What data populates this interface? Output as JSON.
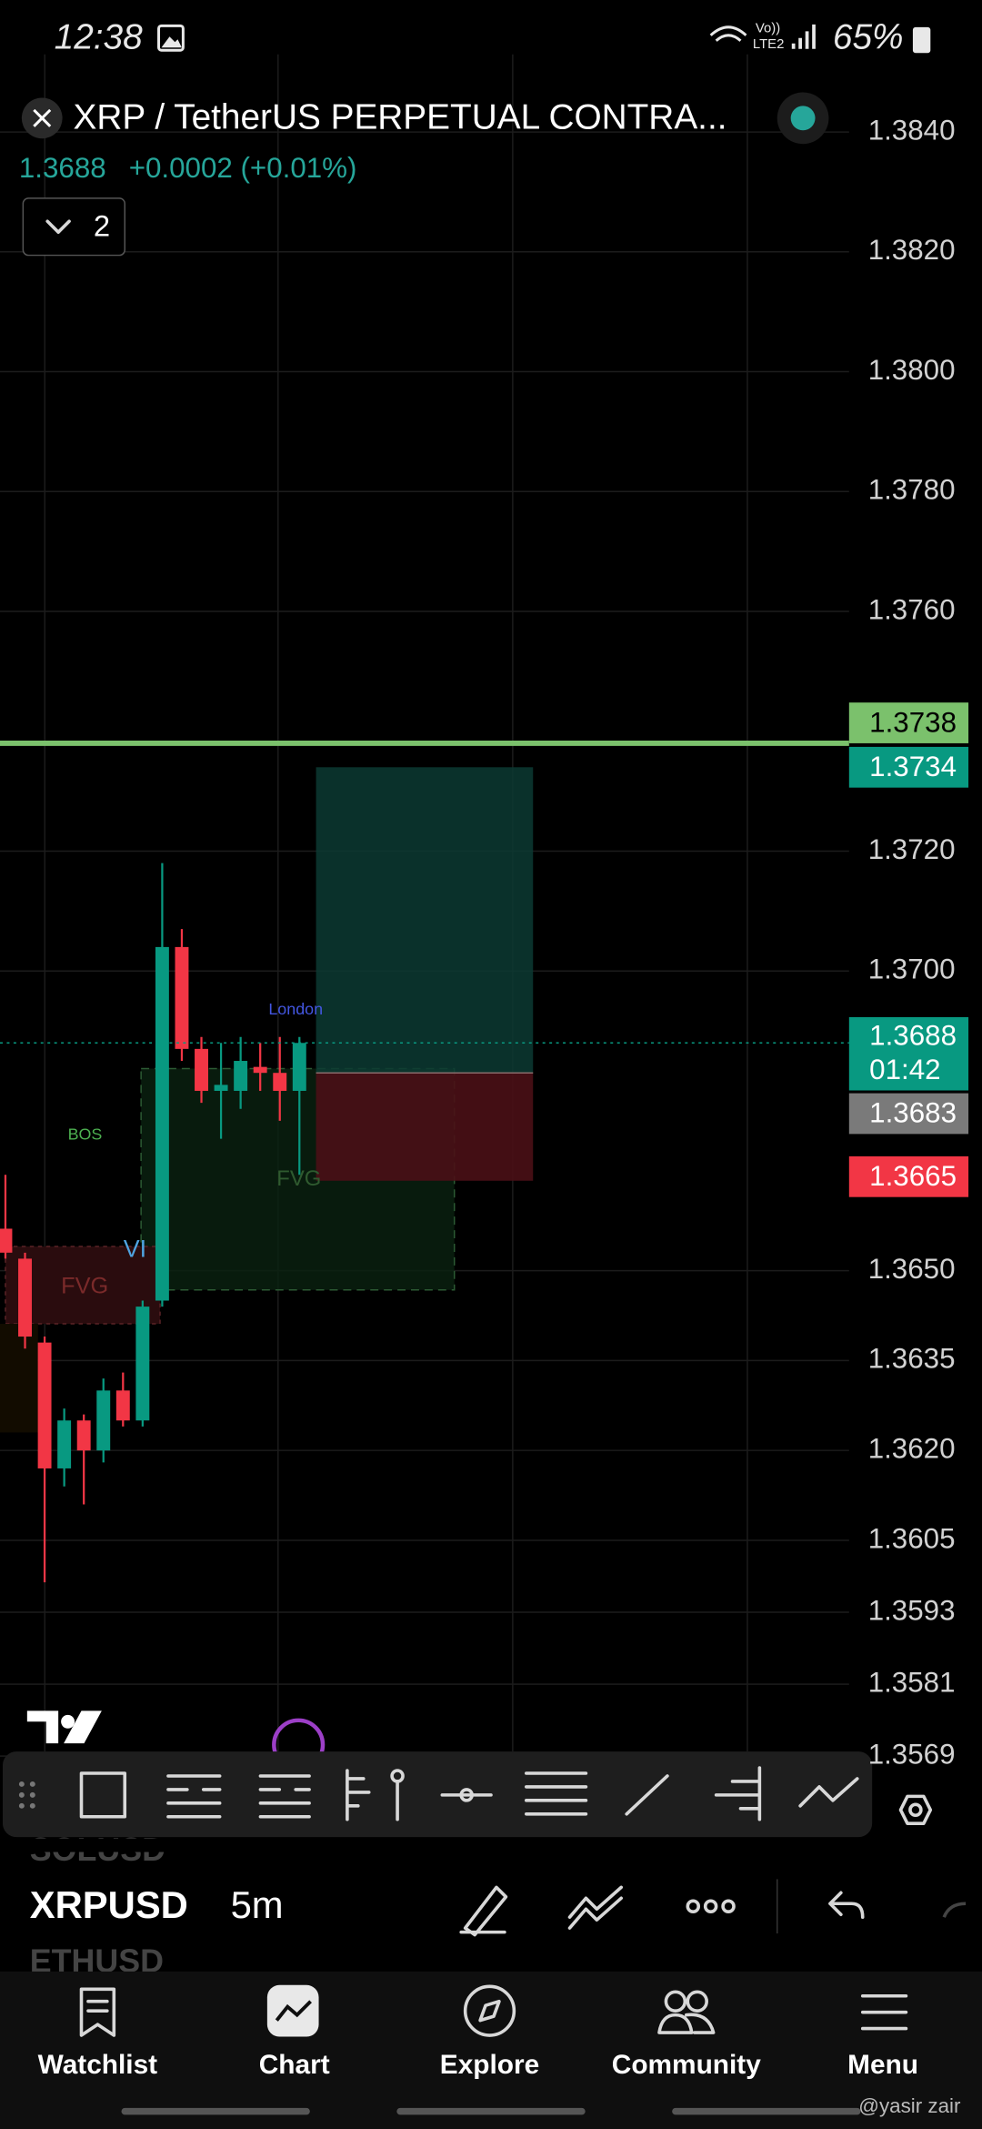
{
  "status_bar": {
    "time": "12:38",
    "network": "Vo))",
    "network_type": "LTE2",
    "battery": "65%"
  },
  "header": {
    "title": "XRP / TetherUS PERPETUAL CONTRA...",
    "price": "1.3688",
    "change": "+0.0002 (+0.01%)",
    "indicators_count": "2"
  },
  "chart_data": {
    "type": "candlestick",
    "ylim": [
      1.3565,
      1.3855
    ],
    "yticks": [
      {
        "value": 1.384,
        "label": "1.3840"
      },
      {
        "value": 1.382,
        "label": "1.3820"
      },
      {
        "value": 1.38,
        "label": "1.3800"
      },
      {
        "value": 1.378,
        "label": "1.3780"
      },
      {
        "value": 1.376,
        "label": "1.3760"
      },
      {
        "value": 1.372,
        "label": "1.3720"
      },
      {
        "value": 1.37,
        "label": "1.3700"
      },
      {
        "value": 1.365,
        "label": "1.3650"
      },
      1.3635,
      {
        "value": 1.362,
        "label": "1.3620"
      },
      1.3605,
      1.3593,
      1.3581,
      1.3569
    ],
    "grid": true,
    "up_color": "#089981",
    "down_color": "#f23645",
    "candles": [
      {
        "open": 1.3657,
        "high": 1.3666,
        "low": 1.3652,
        "close": 1.3653
      },
      {
        "open": 1.3652,
        "high": 1.3653,
        "low": 1.3637,
        "close": 1.3639
      },
      {
        "open": 1.3638,
        "high": 1.3639,
        "low": 1.3598,
        "close": 1.3617
      },
      {
        "open": 1.3617,
        "high": 1.3627,
        "low": 1.3614,
        "close": 1.3625
      },
      {
        "open": 1.3625,
        "high": 1.3626,
        "low": 1.3611,
        "close": 1.362
      },
      {
        "open": 1.362,
        "high": 1.3632,
        "low": 1.3618,
        "close": 1.363
      },
      {
        "open": 1.363,
        "high": 1.3633,
        "low": 1.3624,
        "close": 1.3625
      },
      {
        "open": 1.3625,
        "high": 1.3645,
        "low": 1.3624,
        "close": 1.3644
      },
      {
        "open": 1.3645,
        "high": 1.3718,
        "low": 1.3644,
        "close": 1.3704
      },
      {
        "open": 1.3704,
        "high": 1.3707,
        "low": 1.3685,
        "close": 1.3687
      },
      {
        "open": 1.3687,
        "high": 1.3689,
        "low": 1.3678,
        "close": 1.368
      },
      {
        "open": 1.368,
        "high": 1.3688,
        "low": 1.3672,
        "close": 1.3681
      },
      {
        "open": 1.368,
        "high": 1.3689,
        "low": 1.3677,
        "close": 1.3685
      },
      {
        "open": 1.3684,
        "high": 1.3688,
        "low": 1.368,
        "close": 1.3683
      },
      {
        "open": 1.3683,
        "high": 1.3689,
        "low": 1.3675,
        "close": 1.368
      },
      {
        "open": 1.368,
        "high": 1.3689,
        "low": 1.3666,
        "close": 1.3688
      }
    ],
    "levels": [
      {
        "value": 1.3738,
        "color": "#7bc16c",
        "text_color": "#000000",
        "line": "solid"
      },
      {
        "value": 1.3734,
        "color": "#089981",
        "text_color": "#ffffff"
      },
      {
        "value": 1.3688,
        "color": "#089981",
        "text_color": "#ffffff",
        "countdown": "01:42",
        "line": "dotted"
      },
      {
        "value": 1.3683,
        "color": "#7a7a7a",
        "text_color": "#ffffff"
      },
      {
        "value": 1.3665,
        "color": "#f23645",
        "text_color": "#ffffff"
      }
    ],
    "annotations": {
      "session": "London",
      "structure": "BOS",
      "imbalance": "VI",
      "gap_left": "FVG",
      "gap_right": "FVG"
    }
  },
  "symbol_bar": {
    "previous": "SOLUSD",
    "symbol": "XRPUSD",
    "interval": "5m",
    "next": "ETHUSD"
  },
  "nav": {
    "items": [
      "Watchlist",
      "Chart",
      "Explore",
      "Community",
      "Menu"
    ]
  },
  "watermark": "@yasir zair"
}
